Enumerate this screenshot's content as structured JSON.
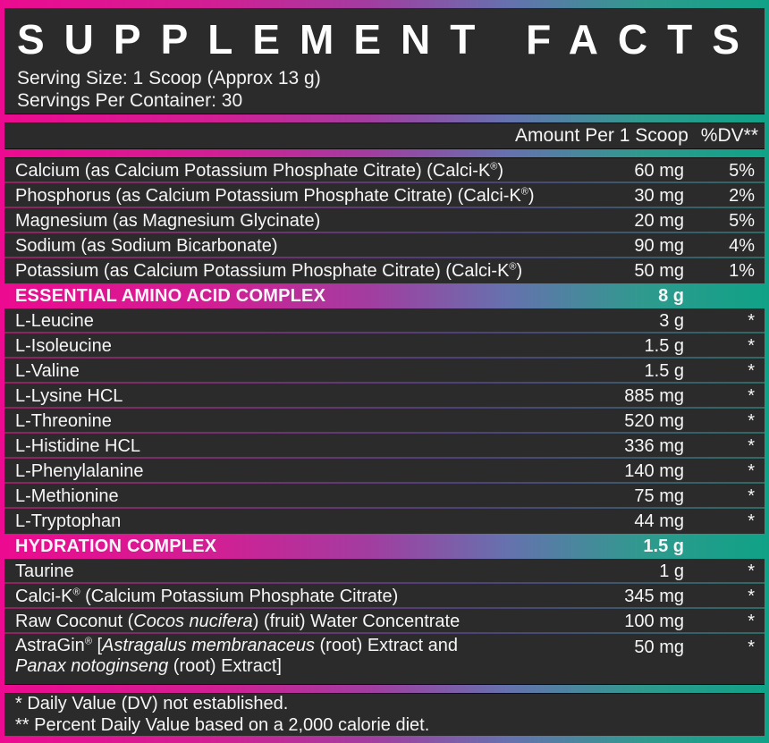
{
  "colors": {
    "pink": "#ec0b90",
    "purple": "#a23da0",
    "slate": "#6671ae",
    "teal": "#10a287",
    "row_bg": "#2b2b2c",
    "frame_bg": "#181818",
    "text": "#f6f6f6"
  },
  "header": {
    "title": "SUPPLEMENT FACTS",
    "serving_size": "Serving Size: 1 Scoop (Approx 13 g)",
    "servings_per_container": "Servings Per Container: 30"
  },
  "table": {
    "amount_header": "Amount Per 1 Scoop",
    "dv_header": "%DV**",
    "rows": [
      {
        "kind": "item",
        "name": "Calcium (as Calcium Potassium Phosphate Citrate) (Calci-K®)",
        "amount": "60 mg",
        "dv": "5%"
      },
      {
        "kind": "item",
        "name": "Phosphorus (as Calcium Potassium Phosphate Citrate) (Calci-K®)",
        "amount": "30 mg",
        "dv": "2%"
      },
      {
        "kind": "item",
        "name": "Magnesium (as Magnesium Glycinate)",
        "amount": "20 mg",
        "dv": "5%"
      },
      {
        "kind": "item",
        "name": "Sodium (as Sodium Bicarbonate)",
        "amount": "90 mg",
        "dv": "4%"
      },
      {
        "kind": "item",
        "name": "Potassium (as Calcium Potassium Phosphate Citrate) (Calci-K®)",
        "amount": "50 mg",
        "dv": "1%"
      },
      {
        "kind": "section",
        "name": "ESSENTIAL AMINO ACID COMPLEX",
        "amount": "8 g",
        "dv": ""
      },
      {
        "kind": "item",
        "name": "L-Leucine",
        "amount": "3 g",
        "dv": "*"
      },
      {
        "kind": "item",
        "name": "L-Isoleucine",
        "amount": "1.5 g",
        "dv": "*"
      },
      {
        "kind": "item",
        "name": "L-Valine",
        "amount": "1.5 g",
        "dv": "*"
      },
      {
        "kind": "item",
        "name": "L-Lysine HCL",
        "amount": "885 mg",
        "dv": "*"
      },
      {
        "kind": "item",
        "name": "L-Threonine",
        "amount": "520 mg",
        "dv": "*"
      },
      {
        "kind": "item",
        "name": "L-Histidine HCL",
        "amount": "336 mg",
        "dv": "*"
      },
      {
        "kind": "item",
        "name": "L-Phenylalanine",
        "amount": "140 mg",
        "dv": "*"
      },
      {
        "kind": "item",
        "name": "L-Methionine",
        "amount": "75 mg",
        "dv": "*"
      },
      {
        "kind": "item",
        "name": "L-Tryptophan",
        "amount": "44 mg",
        "dv": "*"
      },
      {
        "kind": "section",
        "name": "HYDRATION COMPLEX",
        "amount": "1.5 g",
        "dv": ""
      },
      {
        "kind": "item",
        "name": "Taurine",
        "amount": "1 g",
        "dv": "*"
      },
      {
        "kind": "item",
        "name": "Calci-K® (Calcium Potassium Phosphate Citrate)",
        "amount": "345 mg",
        "dv": "*"
      },
      {
        "kind": "item",
        "name": "Raw Coconut (_Cocos nucifera_) (fruit) Water Concentrate",
        "amount": "100 mg",
        "dv": "*"
      },
      {
        "kind": "item",
        "name": "AstraGin® [_Astragalus membranaceus_ (root) Extract and",
        "name2": "_Panax notoginseng_ (root) Extract]",
        "amount": "50 mg",
        "dv": "*"
      }
    ]
  },
  "footnotes": [
    "* Daily Value (DV) not established.",
    "** Percent Daily Value based on a 2,000 calorie diet."
  ]
}
